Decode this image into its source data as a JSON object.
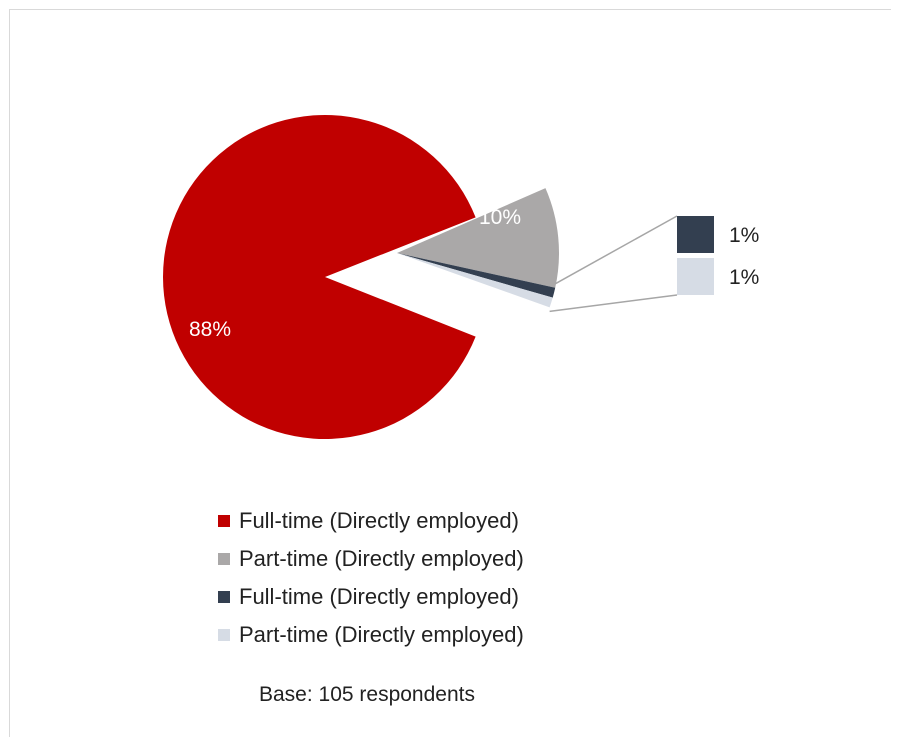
{
  "chart_data": {
    "type": "pie",
    "subtype": "pie-of-pie-bar",
    "slices": [
      {
        "label": "Full-time (Directly employed)",
        "value": 88,
        "display": "88%",
        "color": "#c00000"
      },
      {
        "label": "Part-time (Directly employed)",
        "value": 10,
        "display": "10%",
        "color": "#aaa8a8"
      },
      {
        "label": "Full-time (Directly employed)",
        "value": 1,
        "display": "1%",
        "color": "#333f50"
      },
      {
        "label": "Part-time (Directly employed)",
        "value": 1,
        "display": "1%",
        "color": "#d6dce5"
      }
    ],
    "legend_position": "bottom",
    "note": "Base: 105 respondents"
  }
}
